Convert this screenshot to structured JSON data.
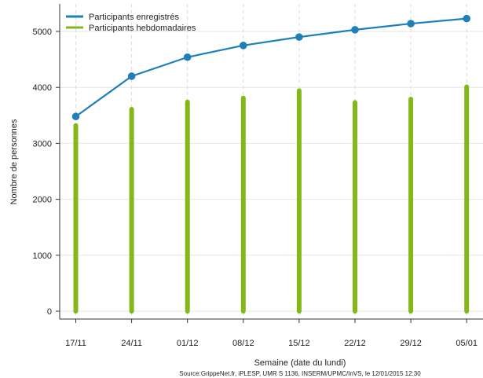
{
  "chart_data": {
    "type": "bar+line",
    "categories": [
      "17/11",
      "24/11",
      "01/12",
      "08/12",
      "15/12",
      "22/12",
      "29/12",
      "05/01"
    ],
    "series": [
      {
        "name": "Participants enregistrés",
        "type": "line",
        "color": "#1f7fb8",
        "values": [
          3480,
          4200,
          4540,
          4750,
          4900,
          5030,
          5140,
          5230
        ]
      },
      {
        "name": "Participants hebdomadaires",
        "type": "bar",
        "color": "#84b818",
        "values": [
          3320,
          3610,
          3740,
          3810,
          3940,
          3730,
          3790,
          4010
        ]
      }
    ],
    "xlabel": "Semaine (date du lundi)",
    "ylabel": "Nombre de personnes",
    "ylim": [
      0,
      5400
    ],
    "yticks": [
      0,
      1000,
      2000,
      3000,
      4000,
      5000
    ],
    "grid": true,
    "legend_position": "top-left",
    "source": "Source:GrippeNet.fr, iPLESP, UMR S 1136, INSERM/UPMC/InVS, le 12/01/2015 12:30"
  }
}
